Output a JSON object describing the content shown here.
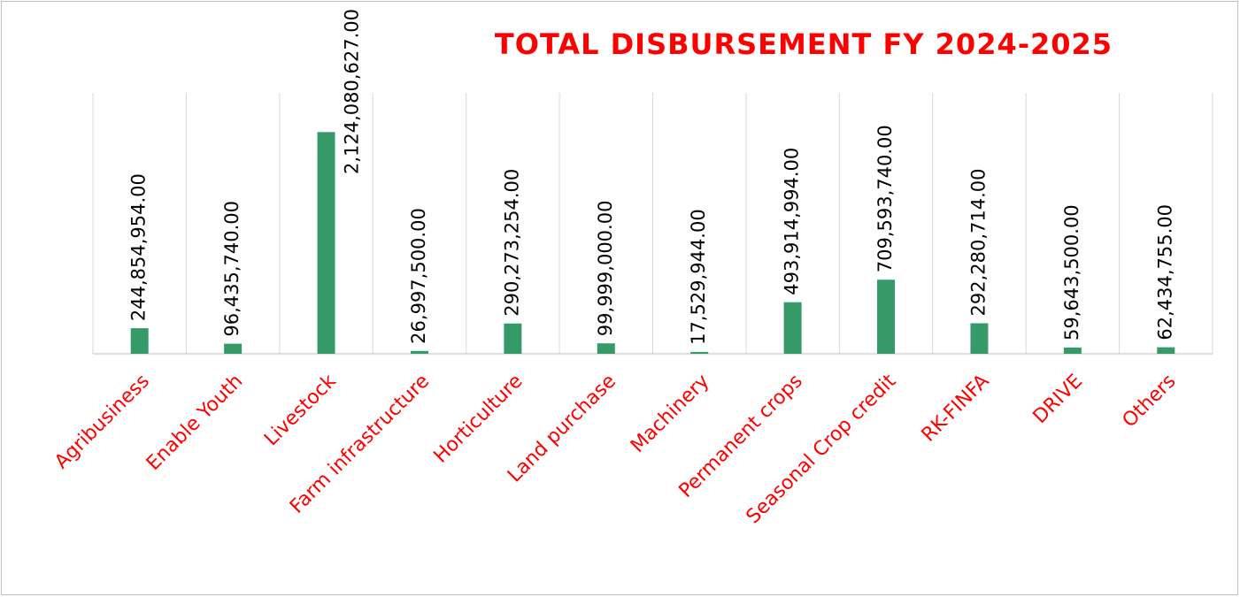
{
  "chart_data": {
    "type": "bar",
    "title": "TOTAL DISBURSEMENT FY 2024-2025",
    "categories": [
      "Agribusiness",
      "Enable Youth",
      "Livestock",
      "Farm infrastructure",
      "Horticulture",
      "Land purchase",
      "Machinery",
      "Permanent crops",
      "Seasonal Crop credit",
      "RK-FINFA",
      "DRIVE",
      "Others"
    ],
    "values": [
      244854954,
      96435740,
      2124080627,
      26997500,
      290273254,
      99999000,
      17529944,
      493914994,
      709593740,
      292280714,
      59643500,
      62434755
    ],
    "value_labels": [
      "244,854,954.00",
      "96,435,740.00",
      "2,124,080,627.00",
      "26,997,500.00",
      "290,273,254.00",
      "99,999,000.00",
      "17,529,944.00",
      "493,914,994.00",
      "709,593,740.00",
      "292,280,714.00",
      "59,643,500.00",
      "62,434,755.00"
    ],
    "color": "#359a67",
    "ylim": [
      0,
      2500000000
    ]
  }
}
